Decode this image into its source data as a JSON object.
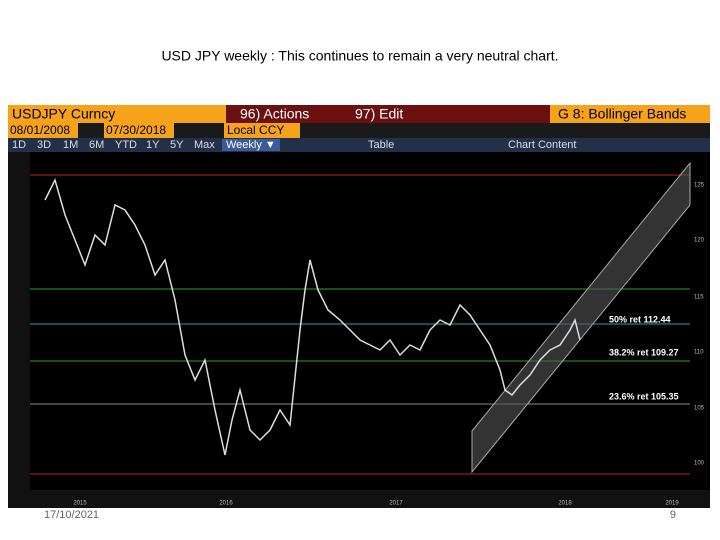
{
  "header": {
    "title": "USD JPY weekly : This continues to remain a very neutral chart."
  },
  "terminal": {
    "top_bar": [
      "USDJPY Curncy",
      "96) Actions",
      "97) Edit",
      "G 8: Bollinger Bands"
    ],
    "date_bar": [
      "08/01/2008",
      "07/30/2018",
      "Local CCY"
    ],
    "period_buttons": [
      "1D",
      "3D",
      "1M",
      "6M",
      "YTD",
      "1Y",
      "5Y",
      "Max",
      "Weekly ▼"
    ],
    "tools": [
      "Table",
      "Chart Content"
    ],
    "annotations": [
      "50% ret 112.44",
      "38.2% ret 109.27",
      "23.6% ret 105.35"
    ],
    "right_axis": [
      "125",
      "120",
      "115",
      "110",
      "105",
      "100"
    ],
    "x_years": [
      "2015",
      "2016",
      "2017",
      "2018",
      "2019"
    ]
  },
  "footer": {
    "date": "17/10/2021",
    "page": "9"
  }
}
